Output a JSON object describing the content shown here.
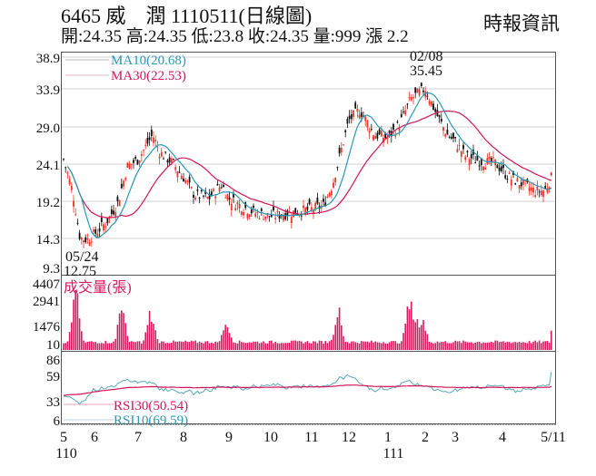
{
  "header": {
    "title": "6465 威　潤 1110511(日線圖)",
    "stats": "開:24.35 高:24.35 低:23.8 收:24.35 量:999 漲 2.2",
    "source": "時報資訊",
    "stock_code": "6465",
    "stock_name": "威潤",
    "date": "1110511",
    "open": "24.35",
    "high": "24.35",
    "low": "23.8",
    "close": "24.35",
    "volume": "999",
    "change": "2.2"
  },
  "colors": {
    "up": "#e8352a",
    "down": "#111111",
    "ma10": "#2a97b4",
    "ma30": "#d4145a",
    "volume": "#d81b60",
    "rsi30": "#d4145a",
    "rsi10": "#5aaab8",
    "grid": "#cccccc"
  },
  "chart_data": [
    {
      "type": "candlestick",
      "title": "Price (daily)",
      "y_ticks": [
        "38.9",
        "33.9",
        "29.0",
        "24.1",
        "19.2",
        "14.3",
        "9.3"
      ],
      "ylim": [
        9.3,
        38.9
      ],
      "legend": [
        {
          "name": "MA10",
          "value": "20.68",
          "label": "MA10(20.68)"
        },
        {
          "name": "MA30",
          "value": "22.53",
          "label": "MA30(22.53)"
        }
      ],
      "annotations": [
        {
          "date": "05/24",
          "value": "12.75",
          "type": "low"
        },
        {
          "date": "02/08",
          "value": "35.45",
          "type": "high"
        }
      ],
      "approx_close_path": [
        {
          "month": "5/110",
          "close": 24.5
        },
        {
          "month": "late 5",
          "close": 13.2
        },
        {
          "month": "6",
          "close": 15.5
        },
        {
          "month": "7",
          "close": 26.0
        },
        {
          "month": "8",
          "close": 20.5
        },
        {
          "month": "9",
          "close": 17.5
        },
        {
          "month": "10",
          "close": 16.5
        },
        {
          "month": "11",
          "close": 17.5
        },
        {
          "month": "12",
          "close": 29.5
        },
        {
          "month": "1/111",
          "close": 27.5
        },
        {
          "month": "2",
          "close": 33.5
        },
        {
          "month": "3",
          "close": 25.0
        },
        {
          "month": "4",
          "close": 23.5
        },
        {
          "month": "5/11",
          "close": 22.2
        }
      ]
    },
    {
      "type": "bar",
      "title": "成交量(張)",
      "y_ticks": [
        "4407",
        "2941",
        "1476",
        "10"
      ],
      "ylim": [
        10,
        4407
      ],
      "peaks": [
        {
          "near": "late 5",
          "value": 4100
        },
        {
          "near": "6/7",
          "value": 2900
        },
        {
          "near": "7",
          "value": 2600
        },
        {
          "near": "9",
          "value": 1900
        },
        {
          "near": "11/12",
          "value": 2700
        },
        {
          "near": "2",
          "value": 4000
        }
      ]
    },
    {
      "type": "line",
      "title": "RSI",
      "y_ticks": [
        "86",
        "59",
        "33",
        "6"
      ],
      "ylim": [
        6,
        86
      ],
      "series": [
        {
          "name": "RSI30",
          "value": "50.54",
          "label": "RSI30(50.54)"
        },
        {
          "name": "RSI10",
          "value": "69.59",
          "label": "RSI10(69.59)"
        }
      ]
    }
  ],
  "x_axis": {
    "labels": [
      "5",
      "6",
      "7",
      "8",
      "9",
      "10",
      "11",
      "12",
      "1",
      "2",
      "3",
      "4",
      "5/11"
    ],
    "year_labels": [
      {
        "at": "5",
        "text": "110"
      },
      {
        "at": "1",
        "text": "111"
      }
    ]
  },
  "labels": {
    "ma10": "MA10(20.68)",
    "ma30": "MA30(22.53)",
    "volume_title": "成交量(張)",
    "rsi30": "RSI30(50.54)",
    "rsi10": "RSI10(69.59)",
    "low_date": "05/24",
    "low_value": "12.75",
    "high_date": "02/08",
    "high_value": "35.45",
    "y_price": [
      "38.9",
      "33.9",
      "29.0",
      "24.1",
      "19.2",
      "14.3",
      "9.3"
    ],
    "y_vol": [
      "4407",
      "2941",
      "1476",
      "10"
    ],
    "y_rsi": [
      "86",
      "59",
      "33",
      "6"
    ],
    "x_months": [
      "5",
      "6",
      "7",
      "8",
      "9",
      "10",
      "11",
      "12",
      "1",
      "2",
      "3",
      "4",
      "5/11"
    ],
    "year_110": "110",
    "year_111": "111"
  }
}
